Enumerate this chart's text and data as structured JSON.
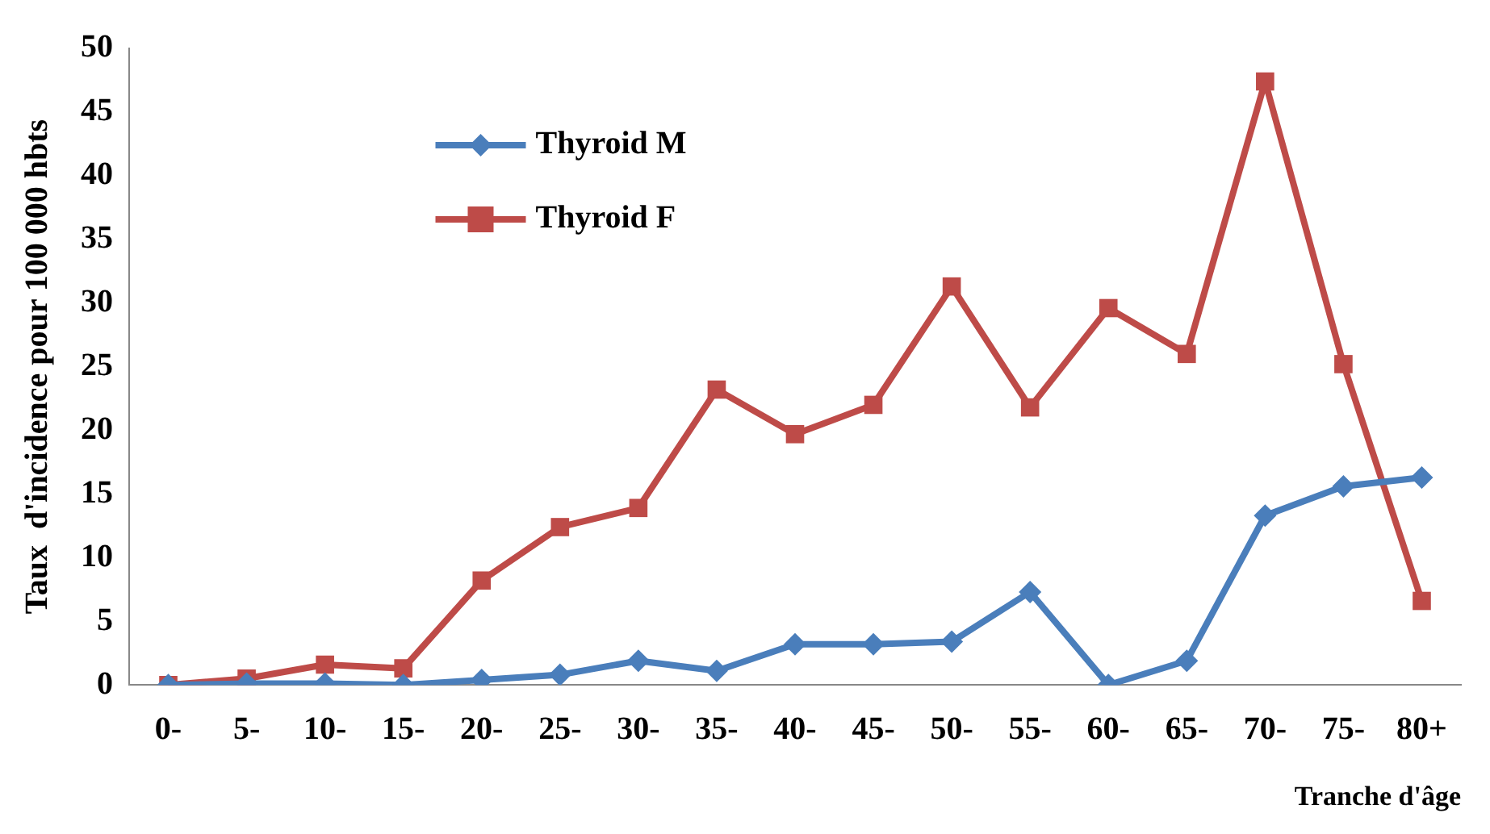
{
  "chart_data": {
    "type": "line",
    "xlabel": "Tranche d'âge",
    "ylabel": "Taux  d'incidence pour 100 000 hbts",
    "categories": [
      "0-",
      "5-",
      "10-",
      "15-",
      "20-",
      "25-",
      "30-",
      "35-",
      "40-",
      "45-",
      "50-",
      "55-",
      "60-",
      "65-",
      "70-",
      "75-",
      "80+"
    ],
    "series": [
      {
        "name": "Thyroid M",
        "color": "#4a7ebb",
        "marker": "diamond",
        "values": [
          0,
          0.1,
          0.1,
          0,
          0.4,
          0.8,
          1.9,
          1.1,
          3.2,
          3.2,
          3.4,
          7.3,
          0,
          1.9,
          13.3,
          15.6,
          16.3
        ]
      },
      {
        "name": "Thyroid F",
        "color": "#be4b48",
        "marker": "square",
        "values": [
          0,
          0.5,
          1.6,
          1.3,
          8.2,
          12.4,
          13.9,
          23.2,
          19.7,
          22,
          31.3,
          21.8,
          29.6,
          26,
          47.4,
          25.2,
          6.6
        ]
      }
    ],
    "ylim": [
      0,
      50
    ],
    "yticks": [
      0,
      5,
      10,
      15,
      20,
      25,
      30,
      35,
      40,
      45,
      50
    ],
    "grid": false,
    "legend": "top",
    "line_style": "solid"
  }
}
